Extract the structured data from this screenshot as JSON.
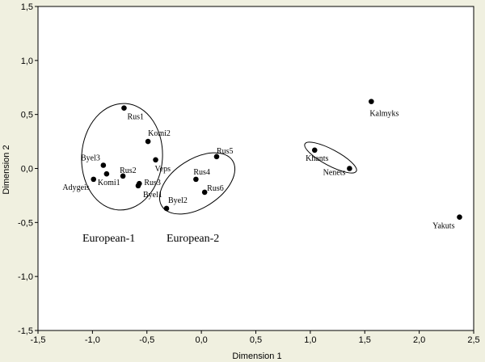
{
  "chart_data": {
    "type": "scatter",
    "title": "",
    "xlabel": "Dimension 1",
    "ylabel": "Dimension 2",
    "xlim": [
      -1.5,
      2.5
    ],
    "ylim": [
      -1.5,
      1.5
    ],
    "xticks": [
      -1.5,
      -1.0,
      -0.5,
      0.0,
      0.5,
      1.0,
      1.5,
      2.0,
      2.5
    ],
    "xtick_labels": [
      "-1,5",
      "-1,0",
      "-0,5",
      "0,0",
      "0,5",
      "1,0",
      "1,5",
      "2,0",
      "2,5"
    ],
    "yticks": [
      1.5,
      1.0,
      0.5,
      0.0,
      -0.5,
      -1.0,
      -1.5
    ],
    "ytick_labels": [
      "1,5",
      "1,0",
      "0,5",
      "0,0",
      "-0,5",
      "-1,0",
      "-1,5"
    ],
    "grid": false,
    "points": [
      {
        "label": "Rus1",
        "x": -0.71,
        "y": 0.56
      },
      {
        "label": "Komi2",
        "x": -0.49,
        "y": 0.25
      },
      {
        "label": "Byel3",
        "x": -0.9,
        "y": 0.03
      },
      {
        "label": "Veps",
        "x": -0.42,
        "y": 0.08
      },
      {
        "label": "Rus2",
        "x": -0.72,
        "y": -0.07
      },
      {
        "label": "Adygeis",
        "x": -0.99,
        "y": -0.1
      },
      {
        "label": "Komi1",
        "x": -0.87,
        "y": -0.05
      },
      {
        "label": "Rus3",
        "x": -0.57,
        "y": -0.14
      },
      {
        "label": "Byel1",
        "x": -0.58,
        "y": -0.16
      },
      {
        "label": "Rus5",
        "x": 0.14,
        "y": 0.11
      },
      {
        "label": "Rus4",
        "x": -0.05,
        "y": -0.1
      },
      {
        "label": "Rus6",
        "x": 0.03,
        "y": -0.22
      },
      {
        "label": "Byel2",
        "x": -0.32,
        "y": -0.37
      },
      {
        "label": "Khants",
        "x": 1.04,
        "y": 0.17
      },
      {
        "label": "Nenets",
        "x": 1.36,
        "y": 0.0
      },
      {
        "label": "Kalmyks",
        "x": 1.56,
        "y": 0.62
      },
      {
        "label": "Yakuts",
        "x": 2.37,
        "y": -0.45
      }
    ],
    "groups": [
      {
        "label": "European-1"
      },
      {
        "label": "European-2"
      },
      {
        "label": ""
      }
    ]
  },
  "colors": {
    "background": "#f0f0e0",
    "plot_area": "#ffffff",
    "marker": "#000000",
    "text": "#000000"
  }
}
